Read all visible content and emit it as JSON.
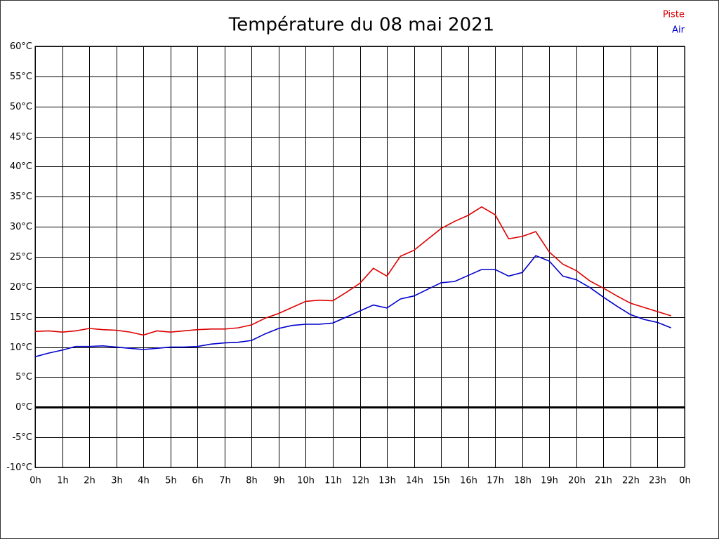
{
  "chart_data": {
    "type": "line",
    "title": "Température du 08 mai 2021",
    "x": [
      0,
      0.5,
      1,
      1.5,
      2,
      2.5,
      3,
      3.5,
      4,
      4.5,
      5,
      5.5,
      6,
      6.5,
      7,
      7.5,
      8,
      8.5,
      9,
      9.5,
      10,
      10.5,
      11,
      11.5,
      12,
      12.5,
      13,
      13.5,
      14,
      14.5,
      15,
      15.5,
      16,
      16.5,
      17,
      17.5,
      18,
      18.5,
      19,
      19.5,
      20,
      20.5,
      21,
      21.5,
      22,
      22.5,
      23,
      23.5
    ],
    "series": [
      {
        "name": "Piste",
        "color": "#dd0000",
        "values": [
          12.6,
          12.7,
          12.5,
          12.7,
          13.1,
          12.9,
          12.8,
          12.5,
          12.0,
          12.7,
          12.5,
          12.7,
          12.9,
          13.0,
          13.0,
          13.2,
          13.7,
          14.8,
          15.6,
          16.6,
          17.6,
          17.8,
          17.7,
          19.1,
          20.6,
          23.1,
          21.8,
          25.1,
          26.1,
          27.9,
          29.7,
          30.9,
          31.9,
          33.3,
          32.0,
          28.0,
          28.4,
          29.2,
          25.8,
          23.8,
          22.7,
          21.0,
          19.8,
          18.5,
          17.3,
          16.6,
          15.9,
          15.2
        ]
      },
      {
        "name": "Air",
        "color": "#0000cc",
        "values": [
          8.4,
          9.0,
          9.5,
          10.1,
          10.1,
          10.2,
          10.0,
          9.8,
          9.6,
          9.8,
          10.0,
          10.0,
          10.1,
          10.5,
          10.7,
          10.8,
          11.1,
          12.2,
          13.1,
          13.6,
          13.8,
          13.8,
          14.0,
          15.0,
          16.0,
          17.0,
          16.5,
          18.0,
          18.5,
          19.6,
          20.7,
          20.9,
          21.9,
          22.9,
          22.9,
          21.8,
          22.4,
          25.2,
          24.3,
          21.8,
          21.2,
          19.9,
          18.3,
          16.8,
          15.4,
          14.6,
          14.1,
          13.2
        ]
      }
    ],
    "xlim": [
      0,
      24
    ],
    "xticks": [
      {
        "value": 0,
        "label": "0h"
      },
      {
        "value": 1,
        "label": "1h"
      },
      {
        "value": 2,
        "label": "2h"
      },
      {
        "value": 3,
        "label": "3h"
      },
      {
        "value": 4,
        "label": "4h"
      },
      {
        "value": 5,
        "label": "5h"
      },
      {
        "value": 6,
        "label": "6h"
      },
      {
        "value": 7,
        "label": "7h"
      },
      {
        "value": 8,
        "label": "8h"
      },
      {
        "value": 9,
        "label": "9h"
      },
      {
        "value": 10,
        "label": "10h"
      },
      {
        "value": 11,
        "label": "11h"
      },
      {
        "value": 12,
        "label": "12h"
      },
      {
        "value": 13,
        "label": "13h"
      },
      {
        "value": 14,
        "label": "14h"
      },
      {
        "value": 15,
        "label": "15h"
      },
      {
        "value": 16,
        "label": "16h"
      },
      {
        "value": 17,
        "label": "17h"
      },
      {
        "value": 18,
        "label": "18h"
      },
      {
        "value": 19,
        "label": "19h"
      },
      {
        "value": 20,
        "label": "20h"
      },
      {
        "value": 21,
        "label": "21h"
      },
      {
        "value": 22,
        "label": "22h"
      },
      {
        "value": 23,
        "label": "23h"
      },
      {
        "value": 24,
        "label": "0h"
      }
    ],
    "ylim": [
      -10,
      60
    ],
    "yticks": [
      {
        "value": -10,
        "label": "-10°C"
      },
      {
        "value": -5,
        "label": "-5°C"
      },
      {
        "value": 0,
        "label": "0°C"
      },
      {
        "value": 5,
        "label": "5°C"
      },
      {
        "value": 10,
        "label": "10°C"
      },
      {
        "value": 15,
        "label": "15°C"
      },
      {
        "value": 20,
        "label": "20°C"
      },
      {
        "value": 25,
        "label": "25°C"
      },
      {
        "value": 30,
        "label": "30°C"
      },
      {
        "value": 35,
        "label": "35°C"
      },
      {
        "value": 40,
        "label": "40°C"
      },
      {
        "value": 45,
        "label": "45°C"
      },
      {
        "value": 50,
        "label": "50°C"
      },
      {
        "value": 55,
        "label": "55°C"
      },
      {
        "value": 60,
        "label": "60°C"
      }
    ],
    "grid": true,
    "zero_line": true,
    "legend": "top-right"
  }
}
